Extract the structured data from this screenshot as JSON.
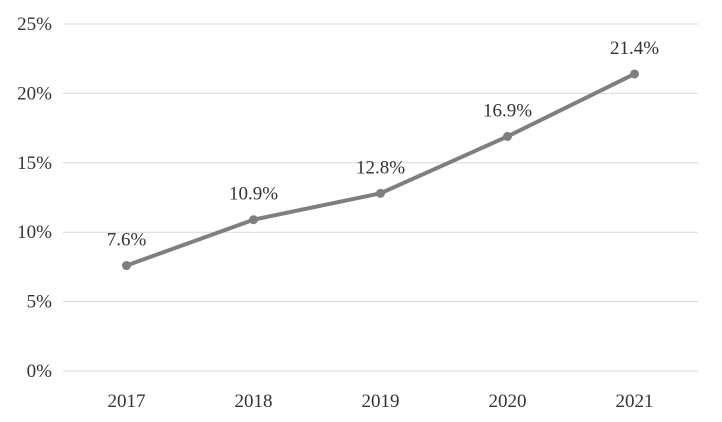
{
  "chart_data": {
    "type": "line",
    "categories": [
      "2017",
      "2018",
      "2019",
      "2020",
      "2021"
    ],
    "series": [
      {
        "values": [
          7.6,
          10.9,
          12.8,
          16.9,
          21.4
        ],
        "data_labels": [
          "7.6%",
          "10.9%",
          "12.8%",
          "16.9%",
          "21.4%"
        ],
        "color": "#7f7f7f"
      }
    ],
    "y_ticks": [
      0,
      5,
      10,
      15,
      20,
      25
    ],
    "y_tick_labels": [
      "0%",
      "5%",
      "10%",
      "15%",
      "20%",
      "25%"
    ],
    "ylim": [
      0,
      25
    ],
    "grid": true,
    "legend": "none"
  }
}
